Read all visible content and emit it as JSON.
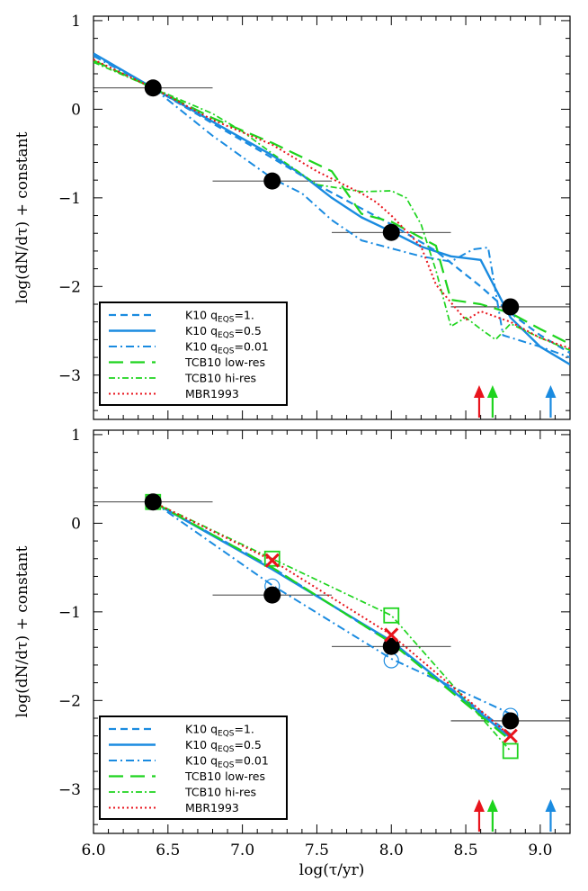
{
  "chart_data": [
    {
      "type": "line",
      "panel": "top",
      "xlabel": "",
      "ylabel": "log(dN/dτ) + constant",
      "xlim": [
        6.0,
        9.2
      ],
      "ylim": [
        -3.5,
        1.05
      ],
      "y_ticks": [
        1,
        0,
        -1,
        -2,
        -3
      ],
      "y_tick_labels": [
        "1",
        "0",
        "−1",
        "−2",
        "−3"
      ],
      "x_ticks": [
        6.0,
        6.5,
        7.0,
        7.5,
        8.0,
        8.5,
        9.0
      ],
      "x_tick_labels": [],
      "legend_position": "bottom-left",
      "observed_points": [
        {
          "x": 6.4,
          "y": 0.24,
          "xerr": [
            6.0,
            6.8
          ]
        },
        {
          "x": 7.2,
          "y": -0.81,
          "xerr": [
            6.8,
            7.6
          ]
        },
        {
          "x": 8.0,
          "y": -1.39,
          "xerr": [
            7.6,
            8.4
          ]
        },
        {
          "x": 8.8,
          "y": -2.23,
          "xerr": [
            8.4,
            9.2
          ]
        }
      ],
      "arrows": [
        {
          "x": 8.59,
          "color": "#e8141c"
        },
        {
          "x": 8.68,
          "color": "#1ed41e"
        },
        {
          "x": 9.07,
          "color": "#1a8be0"
        }
      ],
      "series": [
        {
          "name": "K10 q",
          "sub": "EQS",
          "suffix": "=1.",
          "color": "#1a8be0",
          "dash": "8,5",
          "width": 2.2,
          "x": [
            6.0,
            6.4,
            6.8,
            7.2,
            7.5,
            7.8,
            8.0,
            8.3,
            8.6,
            8.8,
            9.0,
            9.2
          ],
          "y": [
            0.62,
            0.24,
            -0.16,
            -0.55,
            -0.85,
            -1.12,
            -1.3,
            -1.6,
            -2.0,
            -2.3,
            -2.55,
            -2.75
          ]
        },
        {
          "name": "K10 q",
          "sub": "EQS",
          "suffix": "=0.5",
          "color": "#1a8be0",
          "dash": "",
          "width": 2.4,
          "x": [
            6.0,
            6.4,
            6.8,
            7.2,
            7.4,
            7.6,
            7.8,
            8.0,
            8.2,
            8.4,
            8.6,
            8.8,
            9.0,
            9.2
          ],
          "y": [
            0.63,
            0.24,
            -0.14,
            -0.52,
            -0.74,
            -1.0,
            -1.22,
            -1.38,
            -1.55,
            -1.66,
            -1.7,
            -2.35,
            -2.68,
            -2.88
          ]
        },
        {
          "name": "K10 q",
          "sub": "EQS",
          "suffix": "=0.01",
          "color": "#1a8be0",
          "dash": "9,4,2,4",
          "width": 2.0,
          "x": [
            6.0,
            6.4,
            6.8,
            7.2,
            7.4,
            7.6,
            7.8,
            8.0,
            8.2,
            8.4,
            8.55,
            8.65,
            8.75,
            9.0,
            9.2
          ],
          "y": [
            0.6,
            0.24,
            -0.3,
            -0.78,
            -0.95,
            -1.25,
            -1.48,
            -1.57,
            -1.66,
            -1.72,
            -1.58,
            -1.56,
            -2.55,
            -2.68,
            -2.8
          ]
        },
        {
          "name": "TCB10 low-res",
          "sub": "",
          "suffix": "",
          "color": "#1ed41e",
          "dash": "16,8",
          "width": 2.2,
          "x": [
            6.0,
            6.4,
            6.8,
            7.2,
            7.6,
            7.8,
            8.0,
            8.3,
            8.4,
            8.6,
            8.8,
            9.0,
            9.2
          ],
          "y": [
            0.55,
            0.24,
            -0.1,
            -0.38,
            -0.7,
            -1.18,
            -1.27,
            -1.54,
            -2.15,
            -2.2,
            -2.3,
            -2.48,
            -2.65
          ]
        },
        {
          "name": "TCB10 hi-res",
          "sub": "",
          "suffix": "",
          "color": "#1ed41e",
          "dash": "7,3,2,3",
          "width": 1.7,
          "x": [
            6.0,
            6.4,
            6.8,
            7.0,
            7.2,
            7.5,
            7.8,
            8.0,
            8.1,
            8.2,
            8.3,
            8.4,
            8.5,
            8.6,
            8.7,
            8.8,
            9.0,
            9.2
          ],
          "y": [
            0.53,
            0.24,
            -0.05,
            -0.25,
            -0.5,
            -0.85,
            -0.93,
            -0.92,
            -1.0,
            -1.3,
            -1.82,
            -2.45,
            -2.35,
            -2.48,
            -2.6,
            -2.42,
            -2.58,
            -2.72
          ]
        },
        {
          "name": "MBR1993",
          "sub": "",
          "suffix": "",
          "color": "#e8141c",
          "dash": "2,3",
          "width": 2.0,
          "x": [
            6.0,
            6.4,
            6.8,
            7.2,
            7.5,
            7.8,
            7.9,
            8.0,
            8.2,
            8.3,
            8.5,
            8.6,
            8.8,
            9.0,
            9.2
          ],
          "y": [
            0.56,
            0.24,
            -0.12,
            -0.4,
            -0.7,
            -0.95,
            -1.05,
            -1.2,
            -1.55,
            -1.98,
            -2.38,
            -2.28,
            -2.4,
            -2.58,
            -2.7
          ]
        }
      ]
    },
    {
      "type": "line",
      "panel": "bottom",
      "xlabel": "log(τ/yr)",
      "ylabel": "log(dN/dτ) + constant",
      "xlim": [
        6.0,
        9.2
      ],
      "ylim": [
        -3.5,
        1.05
      ],
      "y_ticks": [
        1,
        0,
        -1,
        -2,
        -3
      ],
      "y_tick_labels": [
        "1",
        "0",
        "−1",
        "−2",
        "−3"
      ],
      "x_ticks": [
        6.0,
        6.5,
        7.0,
        7.5,
        8.0,
        8.5,
        9.0
      ],
      "x_tick_labels": [
        "6.0",
        "6.5",
        "7.0",
        "7.5",
        "8.0",
        "8.5",
        "9.0"
      ],
      "legend_position": "bottom-left",
      "observed_points": [
        {
          "x": 6.4,
          "y": 0.24,
          "xerr": [
            6.0,
            6.8
          ]
        },
        {
          "x": 7.2,
          "y": -0.81,
          "xerr": [
            6.8,
            7.6
          ]
        },
        {
          "x": 8.0,
          "y": -1.39,
          "xerr": [
            7.6,
            8.4
          ]
        },
        {
          "x": 8.8,
          "y": -2.23,
          "xerr": [
            8.4,
            9.2
          ]
        }
      ],
      "arrows": [
        {
          "x": 8.59,
          "color": "#e8141c"
        },
        {
          "x": 8.68,
          "color": "#1ed41e"
        },
        {
          "x": 9.07,
          "color": "#1a8be0"
        }
      ],
      "circle_markers": [
        {
          "x": 7.2,
          "y": -0.71
        },
        {
          "x": 8.0,
          "y": -1.55
        },
        {
          "x": 8.8,
          "y": -2.17
        }
      ],
      "square_markers": [
        {
          "x": 6.4,
          "y": 0.24
        },
        {
          "x": 7.2,
          "y": -0.4
        },
        {
          "x": 8.0,
          "y": -1.04
        },
        {
          "x": 8.8,
          "y": -2.57
        }
      ],
      "cross_markers": [
        {
          "x": 7.2,
          "y": -0.42
        },
        {
          "x": 8.0,
          "y": -1.26
        },
        {
          "x": 8.8,
          "y": -2.4
        }
      ],
      "series": [
        {
          "name": "K10 q",
          "sub": "EQS",
          "suffix": "=1.",
          "color": "#1a8be0",
          "dash": "8,5",
          "width": 2.2,
          "x": [
            6.4,
            7.2,
            8.0,
            8.8
          ],
          "y": [
            0.24,
            -0.5,
            -1.35,
            -2.38
          ]
        },
        {
          "name": "K10 q",
          "sub": "EQS",
          "suffix": "=0.5",
          "color": "#1a8be0",
          "dash": "",
          "width": 2.4,
          "x": [
            6.4,
            7.2,
            8.0,
            8.8
          ],
          "y": [
            0.24,
            -0.52,
            -1.33,
            -2.42
          ]
        },
        {
          "name": "K10 q",
          "sub": "EQS",
          "suffix": "=0.01",
          "color": "#1a8be0",
          "dash": "9,4,2,4",
          "width": 2.0,
          "x": [
            6.4,
            7.2,
            8.0,
            8.8
          ],
          "y": [
            0.24,
            -0.7,
            -1.53,
            -2.15
          ]
        },
        {
          "name": "TCB10 low-res",
          "sub": "",
          "suffix": "",
          "color": "#1ed41e",
          "dash": "16,8",
          "width": 2.2,
          "x": [
            6.4,
            7.2,
            8.0,
            8.8
          ],
          "y": [
            0.24,
            -0.5,
            -1.35,
            -2.45
          ]
        },
        {
          "name": "TCB10 hi-res",
          "sub": "",
          "suffix": "",
          "color": "#1ed41e",
          "dash": "7,3,2,3",
          "width": 1.7,
          "x": [
            6.4,
            7.2,
            8.0,
            8.8
          ],
          "y": [
            0.24,
            -0.4,
            -1.04,
            -2.57
          ]
        },
        {
          "name": "MBR1993",
          "sub": "",
          "suffix": "",
          "color": "#e8141c",
          "dash": "2,3",
          "width": 2.0,
          "x": [
            6.4,
            7.2,
            8.0,
            8.8
          ],
          "y": [
            0.24,
            -0.42,
            -1.26,
            -2.4
          ]
        }
      ]
    }
  ]
}
